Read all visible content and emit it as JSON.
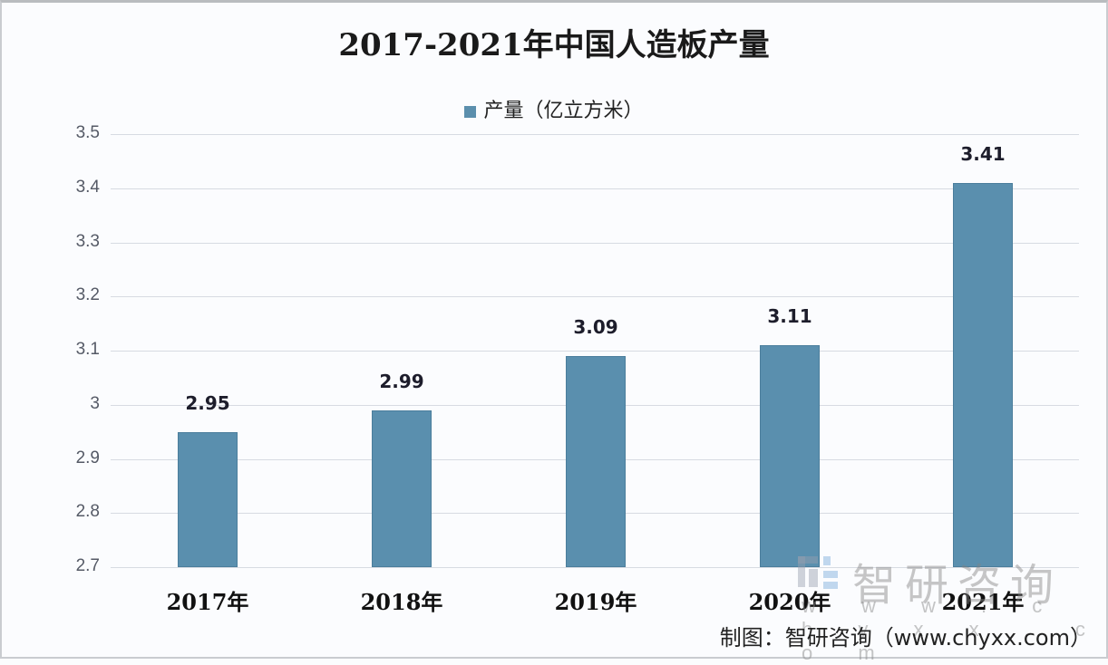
{
  "chart_data": {
    "type": "bar",
    "title": "2017-2021年中国人造板产量",
    "categories": [
      "2017年",
      "2018年",
      "2019年",
      "2020年",
      "2021年"
    ],
    "series": [
      {
        "name": "产量（亿立方米）",
        "values": [
          2.95,
          2.99,
          3.09,
          3.11,
          3.41
        ],
        "color": "#5a8fae"
      }
    ],
    "values": [
      2.95,
      2.99,
      3.09,
      3.11,
      3.41
    ],
    "data_labels": [
      "2.95",
      "2.99",
      "3.09",
      "3.11",
      "3.41"
    ],
    "xlabel": "",
    "ylabel": "",
    "ylim": [
      2.7,
      3.5
    ],
    "yticks": [
      "3.5",
      "3.4",
      "3.3",
      "3.2",
      "3.1",
      "3",
      "2.9",
      "2.8",
      "2.7"
    ],
    "grid": true,
    "legend_position": "top"
  },
  "watermark": {
    "text": "智研咨询",
    "url": "w w w . c h y x x . c o m"
  },
  "source": "制图：智研咨询（www.chyxx.com）"
}
